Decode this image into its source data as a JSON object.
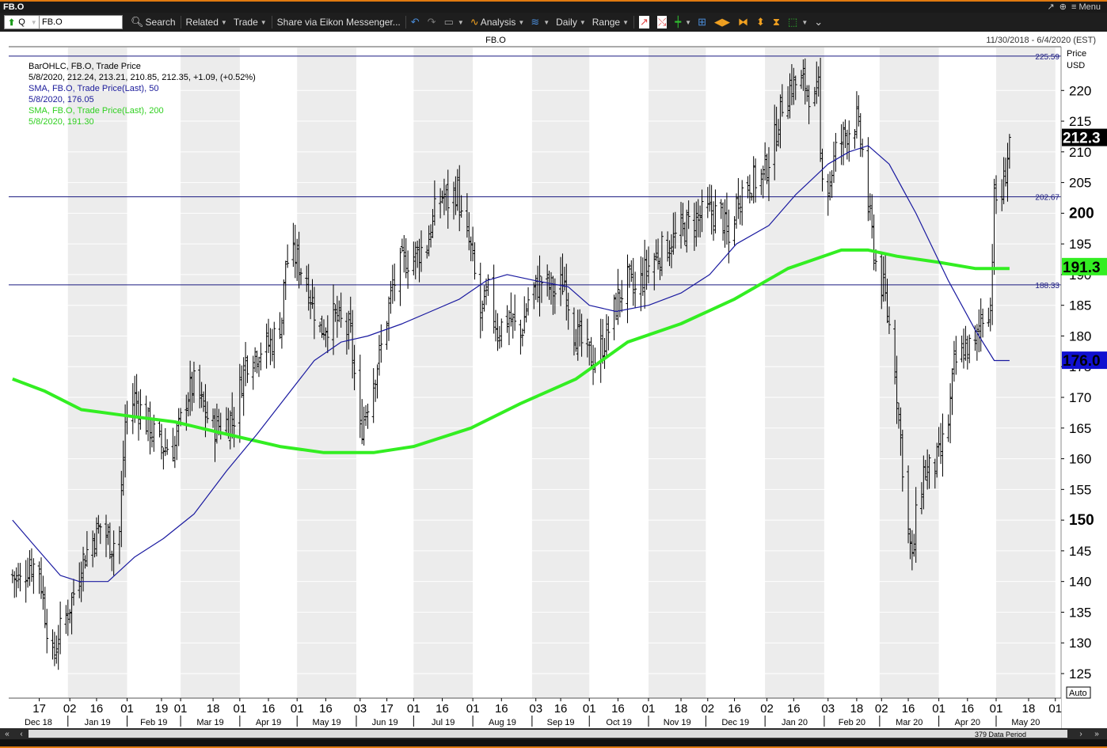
{
  "window": {
    "title": "FB.O",
    "menu_label": "Menu"
  },
  "toolbar": {
    "ric_type": "Q",
    "ric_value": "FB.O",
    "search_label": "Search",
    "related_label": "Related",
    "trade_label": "Trade",
    "share_label": "Share via Eikon Messenger...",
    "analysis_label": "Analysis",
    "interval_label": "Daily",
    "range_label": "Range"
  },
  "chart_header": {
    "center_title": "FB.O",
    "date_range": "11/30/2018 - 6/4/2020 (EST)"
  },
  "legend": [
    {
      "text": "BarOHLC, FB.O, Trade Price",
      "color": "#000000"
    },
    {
      "text": "5/8/2020, 212.24, 213.21, 210.85, 212.35, +1.09, (+0.52%)",
      "color": "#000000"
    },
    {
      "text": "SMA, FB.O, Trade Price(Last),  50",
      "color": "#1a1a9a"
    },
    {
      "text": "5/8/2020, 176.05",
      "color": "#1a1a9a"
    },
    {
      "text": "SMA, FB.O, Trade Price(Last),  200",
      "color": "#30d020"
    },
    {
      "text": "5/8/2020, 191.30",
      "color": "#30d020"
    }
  ],
  "price_axis": {
    "title_line1": "Price",
    "title_line2": "USD",
    "auto_label": "Auto"
  },
  "scroll": {
    "period_label": "379 Data Period"
  },
  "colors": {
    "bars": "#000000",
    "sma50": "#1a1aa0",
    "sma200": "#33ee22",
    "hlines": "#1a1a80",
    "shade": "#ececec"
  },
  "chart_data": {
    "type": "ohlc-bar",
    "symbol": "FB.O",
    "y_range": [
      121,
      227
    ],
    "y_ticks": [
      125,
      130,
      135,
      140,
      145,
      150,
      155,
      160,
      165,
      170,
      175,
      180,
      185,
      190,
      195,
      200,
      205,
      210,
      215,
      220
    ],
    "y_ticks_bold": [
      150,
      200
    ],
    "months": [
      {
        "label": "Dec 18",
        "start": "2018-12-01",
        "end": "2018-12-31"
      },
      {
        "label": "Jan 19",
        "start": "2019-01-01",
        "end": "2019-01-31"
      },
      {
        "label": "Feb 19",
        "start": "2019-02-01",
        "end": "2019-02-28"
      },
      {
        "label": "Mar 19",
        "start": "2019-03-01",
        "end": "2019-03-31"
      },
      {
        "label": "Apr 19",
        "start": "2019-04-01",
        "end": "2019-04-30"
      },
      {
        "label": "May 19",
        "start": "2019-05-01",
        "end": "2019-05-31"
      },
      {
        "label": "Jun 19",
        "start": "2019-06-01",
        "end": "2019-06-30"
      },
      {
        "label": "Jul 19",
        "start": "2019-07-01",
        "end": "2019-07-31"
      },
      {
        "label": "Aug 19",
        "start": "2019-08-01",
        "end": "2019-08-31"
      },
      {
        "label": "Sep 19",
        "start": "2019-09-01",
        "end": "2019-09-30"
      },
      {
        "label": "Oct 19",
        "start": "2019-10-01",
        "end": "2019-10-31"
      },
      {
        "label": "Nov 19",
        "start": "2019-11-01",
        "end": "2019-11-30"
      },
      {
        "label": "Dec 19",
        "start": "2019-12-01",
        "end": "2019-12-31"
      },
      {
        "label": "Jan 20",
        "start": "2020-01-01",
        "end": "2020-01-31"
      },
      {
        "label": "Feb 20",
        "start": "2020-02-01",
        "end": "2020-02-29"
      },
      {
        "label": "Mar 20",
        "start": "2020-03-01",
        "end": "2020-03-31"
      },
      {
        "label": "Apr 20",
        "start": "2020-04-01",
        "end": "2020-04-30"
      },
      {
        "label": "May 20",
        "start": "2020-05-01",
        "end": "2020-05-31"
      }
    ],
    "day_ticks": [
      {
        "label": "17",
        "date": "2018-12-17"
      },
      {
        "label": "02",
        "date": "2019-01-02"
      },
      {
        "label": "16",
        "date": "2019-01-16"
      },
      {
        "label": "01",
        "date": "2019-02-01"
      },
      {
        "label": "19",
        "date": "2019-02-19"
      },
      {
        "label": "01",
        "date": "2019-03-01"
      },
      {
        "label": "18",
        "date": "2019-03-18"
      },
      {
        "label": "01",
        "date": "2019-04-01"
      },
      {
        "label": "16",
        "date": "2019-04-16"
      },
      {
        "label": "01",
        "date": "2019-05-01"
      },
      {
        "label": "16",
        "date": "2019-05-16"
      },
      {
        "label": "03",
        "date": "2019-06-03"
      },
      {
        "label": "17",
        "date": "2019-06-17"
      },
      {
        "label": "01",
        "date": "2019-07-01"
      },
      {
        "label": "16",
        "date": "2019-07-16"
      },
      {
        "label": "01",
        "date": "2019-08-01"
      },
      {
        "label": "16",
        "date": "2019-08-16"
      },
      {
        "label": "03",
        "date": "2019-09-03"
      },
      {
        "label": "16",
        "date": "2019-09-16"
      },
      {
        "label": "01",
        "date": "2019-10-01"
      },
      {
        "label": "16",
        "date": "2019-10-16"
      },
      {
        "label": "01",
        "date": "2019-11-01"
      },
      {
        "label": "18",
        "date": "2019-11-18"
      },
      {
        "label": "02",
        "date": "2019-12-02"
      },
      {
        "label": "16",
        "date": "2019-12-16"
      },
      {
        "label": "02",
        "date": "2020-01-02"
      },
      {
        "label": "16",
        "date": "2020-01-16"
      },
      {
        "label": "03",
        "date": "2020-02-03"
      },
      {
        "label": "18",
        "date": "2020-02-18"
      },
      {
        "label": "02",
        "date": "2020-03-02"
      },
      {
        "label": "16",
        "date": "2020-03-16"
      },
      {
        "label": "01",
        "date": "2020-04-01"
      },
      {
        "label": "16",
        "date": "2020-04-16"
      },
      {
        "label": "01",
        "date": "2020-05-01"
      },
      {
        "label": "18",
        "date": "2020-05-18"
      },
      {
        "label": "01",
        "date": "2020-06-01"
      }
    ],
    "horizontal_lines": [
      {
        "label": "225.59",
        "value": 225.59
      },
      {
        "label": "202.67",
        "value": 202.67
      },
      {
        "label": "188.33",
        "value": 188.33
      }
    ],
    "last_values": [
      {
        "label": "212.3",
        "value": 212.35,
        "series": "price"
      },
      {
        "label": "191.3",
        "value": 191.3,
        "series": "sma200"
      },
      {
        "label": "176.0",
        "value": 176.05,
        "series": "sma50"
      }
    ],
    "price_path": [
      [
        "2018-12-03",
        141
      ],
      [
        "2018-12-07",
        140
      ],
      [
        "2018-12-12",
        143
      ],
      [
        "2018-12-17",
        142
      ],
      [
        "2018-12-20",
        135
      ],
      [
        "2018-12-24",
        127
      ],
      [
        "2018-12-27",
        131
      ],
      [
        "2019-01-03",
        137
      ],
      [
        "2019-01-08",
        143
      ],
      [
        "2019-01-14",
        147
      ],
      [
        "2019-01-18",
        149
      ],
      [
        "2019-01-24",
        146
      ],
      [
        "2019-01-28",
        148
      ],
      [
        "2019-01-31",
        166
      ],
      [
        "2019-02-05",
        170
      ],
      [
        "2019-02-11",
        166
      ],
      [
        "2019-02-19",
        162
      ],
      [
        "2019-02-26",
        162
      ],
      [
        "2019-03-04",
        170
      ],
      [
        "2019-03-08",
        172
      ],
      [
        "2019-03-13",
        168
      ],
      [
        "2019-03-18",
        165
      ],
      [
        "2019-03-25",
        166
      ],
      [
        "2019-03-29",
        167
      ],
      [
        "2019-04-04",
        176
      ],
      [
        "2019-04-12",
        178
      ],
      [
        "2019-04-18",
        179
      ],
      [
        "2019-04-23",
        183
      ],
      [
        "2019-04-25",
        192
      ],
      [
        "2019-04-30",
        193
      ],
      [
        "2019-05-06",
        189
      ],
      [
        "2019-05-13",
        181
      ],
      [
        "2019-05-20",
        183
      ],
      [
        "2019-05-24",
        182
      ],
      [
        "2019-05-29",
        180
      ],
      [
        "2019-06-03",
        164
      ],
      [
        "2019-06-05",
        167
      ],
      [
        "2019-06-10",
        173
      ],
      [
        "2019-06-14",
        178
      ],
      [
        "2019-06-20",
        188
      ],
      [
        "2019-06-25",
        192
      ],
      [
        "2019-07-01",
        193
      ],
      [
        "2019-07-08",
        195
      ],
      [
        "2019-07-12",
        200
      ],
      [
        "2019-07-16",
        203
      ],
      [
        "2019-07-19",
        202
      ],
      [
        "2019-07-24",
        204
      ],
      [
        "2019-07-26",
        199
      ],
      [
        "2019-07-31",
        194
      ],
      [
        "2019-08-05",
        183
      ],
      [
        "2019-08-09",
        187
      ],
      [
        "2019-08-14",
        181
      ],
      [
        "2019-08-20",
        183
      ],
      [
        "2019-08-26",
        180
      ],
      [
        "2019-08-30",
        186
      ],
      [
        "2019-09-06",
        189
      ],
      [
        "2019-09-13",
        187
      ],
      [
        "2019-09-18",
        189
      ],
      [
        "2019-09-23",
        181
      ],
      [
        "2019-09-30",
        177
      ],
      [
        "2019-10-04",
        176
      ],
      [
        "2019-10-10",
        180
      ],
      [
        "2019-10-16",
        186
      ],
      [
        "2019-10-21",
        189
      ],
      [
        "2019-10-25",
        187
      ],
      [
        "2019-10-31",
        191
      ],
      [
        "2019-11-05",
        193
      ],
      [
        "2019-11-12",
        195
      ],
      [
        "2019-11-18",
        197
      ],
      [
        "2019-11-25",
        199
      ],
      [
        "2019-12-02",
        200
      ],
      [
        "2019-12-09",
        200
      ],
      [
        "2019-12-13",
        195
      ],
      [
        "2019-12-18",
        203
      ],
      [
        "2019-12-24",
        205
      ],
      [
        "2019-12-31",
        206
      ],
      [
        "2020-01-06",
        212
      ],
      [
        "2020-01-10",
        218
      ],
      [
        "2020-01-15",
        221
      ],
      [
        "2020-01-22",
        221
      ],
      [
        "2020-01-27",
        218
      ],
      [
        "2020-01-29",
        220
      ],
      [
        "2020-01-30",
        209
      ],
      [
        "2020-02-03",
        204
      ],
      [
        "2020-02-07",
        210
      ],
      [
        "2020-02-12",
        213
      ],
      [
        "2020-02-18",
        215
      ],
      [
        "2020-02-21",
        210
      ],
      [
        "2020-02-24",
        201
      ],
      [
        "2020-02-28",
        192
      ],
      [
        "2020-03-04",
        186
      ],
      [
        "2020-03-09",
        175
      ],
      [
        "2020-03-12",
        163
      ],
      [
        "2020-03-16",
        148
      ],
      [
        "2020-03-18",
        143
      ],
      [
        "2020-03-20",
        150
      ],
      [
        "2020-03-24",
        158
      ],
      [
        "2020-03-27",
        158
      ],
      [
        "2020-04-01",
        160
      ],
      [
        "2020-04-06",
        166
      ],
      [
        "2020-04-09",
        175
      ],
      [
        "2020-04-14",
        178
      ],
      [
        "2020-04-20",
        178
      ],
      [
        "2020-04-23",
        183
      ],
      [
        "2020-04-28",
        185
      ],
      [
        "2020-04-30",
        202
      ],
      [
        "2020-05-04",
        203
      ],
      [
        "2020-05-06",
        207
      ],
      [
        "2020-05-08",
        212
      ]
    ],
    "sma50_path": [
      [
        "2018-12-03",
        150
      ],
      [
        "2018-12-14",
        146
      ],
      [
        "2018-12-28",
        141
      ],
      [
        "2019-01-07",
        140
      ],
      [
        "2019-01-22",
        140
      ],
      [
        "2019-02-05",
        144
      ],
      [
        "2019-02-20",
        147
      ],
      [
        "2019-03-08",
        151
      ],
      [
        "2019-03-25",
        158
      ],
      [
        "2019-04-10",
        164
      ],
      [
        "2019-04-25",
        170
      ],
      [
        "2019-05-10",
        176
      ],
      [
        "2019-05-24",
        179
      ],
      [
        "2019-06-07",
        180
      ],
      [
        "2019-06-25",
        182
      ],
      [
        "2019-07-10",
        184
      ],
      [
        "2019-07-25",
        186
      ],
      [
        "2019-08-08",
        189
      ],
      [
        "2019-08-19",
        190
      ],
      [
        "2019-09-03",
        189
      ],
      [
        "2019-09-20",
        188
      ],
      [
        "2019-10-01",
        185
      ],
      [
        "2019-10-15",
        184
      ],
      [
        "2019-11-01",
        185
      ],
      [
        "2019-11-18",
        187
      ],
      [
        "2019-12-03",
        190
      ],
      [
        "2019-12-17",
        195
      ],
      [
        "2020-01-03",
        198
      ],
      [
        "2020-01-17",
        203
      ],
      [
        "2020-02-03",
        208
      ],
      [
        "2020-02-14",
        210
      ],
      [
        "2020-02-24",
        211
      ],
      [
        "2020-03-06",
        208
      ],
      [
        "2020-03-20",
        200
      ],
      [
        "2020-04-06",
        189
      ],
      [
        "2020-04-20",
        181
      ],
      [
        "2020-04-30",
        176
      ],
      [
        "2020-05-08",
        176
      ]
    ],
    "sma200_path": [
      [
        "2018-12-03",
        173
      ],
      [
        "2018-12-20",
        171
      ],
      [
        "2019-01-08",
        168
      ],
      [
        "2019-02-01",
        167
      ],
      [
        "2019-02-26",
        166
      ],
      [
        "2019-03-25",
        164
      ],
      [
        "2019-04-22",
        162
      ],
      [
        "2019-05-15",
        161
      ],
      [
        "2019-06-10",
        161
      ],
      [
        "2019-07-01",
        162
      ],
      [
        "2019-07-31",
        165
      ],
      [
        "2019-08-26",
        169
      ],
      [
        "2019-09-24",
        173
      ],
      [
        "2019-10-21",
        179
      ],
      [
        "2019-11-18",
        182
      ],
      [
        "2019-12-16",
        186
      ],
      [
        "2020-01-13",
        191
      ],
      [
        "2020-02-10",
        194
      ],
      [
        "2020-02-24",
        194
      ],
      [
        "2020-03-10",
        193
      ],
      [
        "2020-04-01",
        192
      ],
      [
        "2020-04-20",
        191
      ],
      [
        "2020-05-08",
        191
      ]
    ]
  }
}
